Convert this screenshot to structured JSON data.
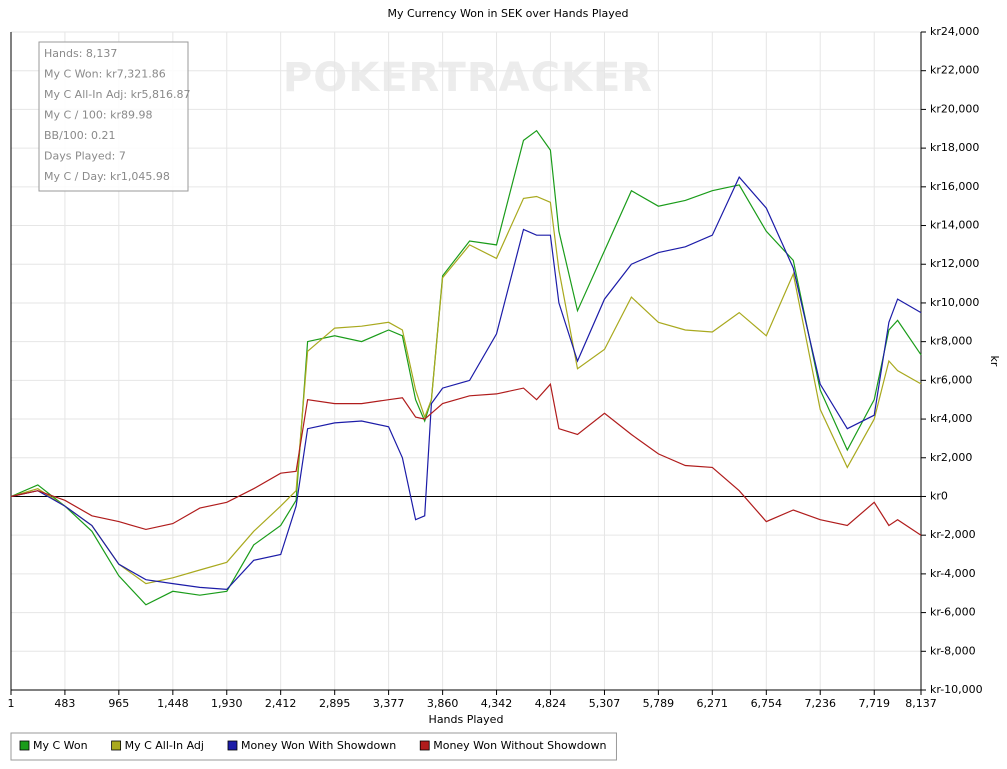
{
  "chart_data": {
    "type": "line",
    "title": "My Currency Won in SEK over Hands Played",
    "xlabel": "Hands Played",
    "ylabel": "kr",
    "watermark": "POKERTRACKER",
    "annotations": [
      "Hands: 8,137",
      "My C Won: kr7,321.86",
      "My C All-In Adj: kr5,816.87",
      "My C / 100: kr89.98",
      "BB/100: 0.21",
      "Days Played: 7",
      "My C / Day: kr1,045.98"
    ],
    "x": [
      1,
      241,
      483,
      724,
      965,
      1207,
      1448,
      1689,
      1930,
      2171,
      2412,
      2550,
      2653,
      2895,
      3136,
      3377,
      3500,
      3618,
      3700,
      3760,
      3860,
      4101,
      4342,
      4583,
      4700,
      4824,
      4900,
      5066,
      5307,
      5548,
      5789,
      6030,
      6271,
      6512,
      6754,
      6995,
      7236,
      7478,
      7719,
      7850,
      7928,
      8137
    ],
    "series": [
      {
        "name": "My C Won",
        "color": "#1a9c1a",
        "values": [
          0,
          600,
          -500,
          -1800,
          -4100,
          -5600,
          -4900,
          -5100,
          -4900,
          -2500,
          -1500,
          -200,
          8000,
          8300,
          8000,
          8600,
          8300,
          5000,
          3900,
          5000,
          11400,
          13200,
          13000,
          18400,
          18900,
          17900,
          13700,
          9600,
          12700,
          15800,
          15000,
          15300,
          15800,
          16100,
          13700,
          12200,
          5500,
          2400,
          5000,
          8600,
          9100,
          7321.86
        ]
      },
      {
        "name": "My C All-In Adj",
        "color": "#a9a91e",
        "values": [
          0,
          400,
          -500,
          -1500,
          -3500,
          -4500,
          -4200,
          -3800,
          -3400,
          -1800,
          -500,
          300,
          7500,
          8700,
          8800,
          9000,
          8600,
          5500,
          4100,
          5000,
          11300,
          13000,
          12300,
          15400,
          15500,
          15200,
          11700,
          6600,
          7600,
          10300,
          9000,
          8600,
          8500,
          9500,
          8300,
          11500,
          4500,
          1500,
          4000,
          7000,
          6500,
          5816.87
        ]
      },
      {
        "name": "Money Won With Showdown",
        "color": "#1c1ca8",
        "values": [
          0,
          300,
          -500,
          -1500,
          -3500,
          -4300,
          -4500,
          -4700,
          -4800,
          -3300,
          -3000,
          -500,
          3500,
          3800,
          3900,
          3600,
          2000,
          -1200,
          -1000,
          4800,
          5600,
          6000,
          8400,
          13800,
          13500,
          13500,
          10000,
          7000,
          10200,
          12000,
          12600,
          12900,
          13500,
          16500,
          14900,
          11800,
          5800,
          3500,
          4200,
          9000,
          10200,
          9500
        ]
      },
      {
        "name": "Money Won Without Showdown",
        "color": "#b01c1c",
        "values": [
          0,
          300,
          -200,
          -1000,
          -1300,
          -1700,
          -1400,
          -600,
          -300,
          400,
          1200,
          1300,
          5000,
          4800,
          4800,
          5000,
          5100,
          4100,
          4000,
          4300,
          4800,
          5200,
          5300,
          5600,
          5000,
          5800,
          3500,
          3200,
          4300,
          3200,
          2200,
          1600,
          1500,
          300,
          -1300,
          -700,
          -1200,
          -1500,
          -300,
          -1500,
          -1200,
          -2000
        ]
      }
    ],
    "xlim": [
      1,
      8137
    ],
    "xticks": [
      1,
      483,
      965,
      {
        "value": 1448,
        "label": "1,448"
      },
      {
        "value": 1930,
        "label": "1,930"
      },
      {
        "value": 2412,
        "label": "2,412"
      },
      {
        "value": 2895,
        "label": "2,895"
      },
      {
        "value": 3377,
        "label": "3,377"
      },
      {
        "value": 3860,
        "label": "3,860"
      },
      {
        "value": 4342,
        "label": "4,342"
      },
      {
        "value": 4824,
        "label": "4,824"
      },
      {
        "value": 5307,
        "label": "5,307"
      },
      {
        "value": 5789,
        "label": "5,789"
      },
      {
        "value": 6271,
        "label": "6,271"
      },
      {
        "value": 6754,
        "label": "6,754"
      },
      {
        "value": 7236,
        "label": "7,236"
      },
      {
        "value": 7719,
        "label": "7,719"
      },
      {
        "value": 8137,
        "label": "8,137"
      }
    ],
    "ylim": [
      -10000,
      24000
    ],
    "yticks": [
      {
        "value": -10000,
        "label": "kr-10,000"
      },
      {
        "value": -8000,
        "label": "kr-8,000"
      },
      {
        "value": -6000,
        "label": "kr-6,000"
      },
      {
        "value": -4000,
        "label": "kr-4,000"
      },
      {
        "value": -2000,
        "label": "kr-2,000"
      },
      {
        "value": 0,
        "label": "kr0"
      },
      {
        "value": 2000,
        "label": "kr2,000"
      },
      {
        "value": 4000,
        "label": "kr4,000"
      },
      {
        "value": 6000,
        "label": "kr6,000"
      },
      {
        "value": 8000,
        "label": "kr8,000"
      },
      {
        "value": 10000,
        "label": "kr10,000"
      },
      {
        "value": 12000,
        "label": "kr12,000"
      },
      {
        "value": 14000,
        "label": "kr14,000"
      },
      {
        "value": 16000,
        "label": "kr16,000"
      },
      {
        "value": 18000,
        "label": "kr18,000"
      },
      {
        "value": 20000,
        "label": "kr20,000"
      },
      {
        "value": 22000,
        "label": "kr22,000"
      },
      {
        "value": 24000,
        "label": "kr24,000"
      }
    ],
    "grid": true,
    "legend": "bottom"
  }
}
